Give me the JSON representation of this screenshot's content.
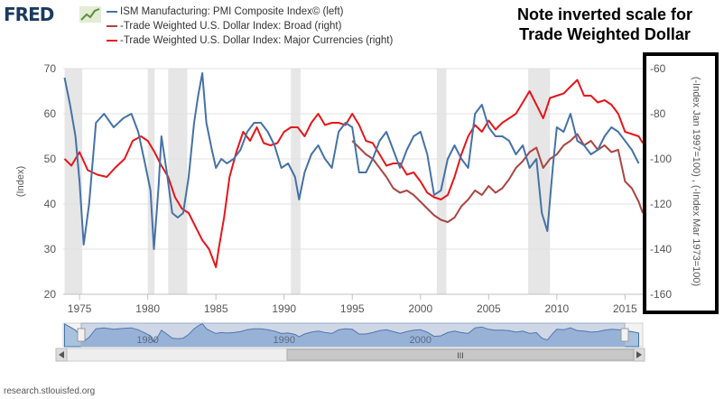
{
  "header": {
    "logo": "FRED",
    "legend": [
      {
        "label": "ISM Manufacturing: PMI Composite Index© (left)",
        "color": "#4572a7"
      },
      {
        "label": "-Trade Weighted U.S. Dollar Index: Broad (right)",
        "color": "#aa4643"
      },
      {
        "label": "-Trade Weighted U.S. Dollar Index: Major Currencies (right)",
        "color": "#e8151b"
      }
    ]
  },
  "note": {
    "line1": "Note inverted scale for",
    "line2": "Trade Weighted Dollar"
  },
  "footer": {
    "source": "research.stlouisfed.org"
  },
  "navigator": {
    "tick_labels": [
      "1980",
      "1990",
      "2000"
    ],
    "scroll_glyph": "III"
  },
  "chart_data": {
    "type": "line",
    "ylabel": "(Index)",
    "y2label": "(-Index Jan 1997=100) , (-Index Mar 1973=100)",
    "x_ticks": [
      1975,
      1980,
      1985,
      1990,
      1995,
      2000,
      2005,
      2010,
      2015
    ],
    "xlim": [
      1973.8,
      2016.3
    ],
    "ylim": [
      20,
      70
    ],
    "y_ticks": [
      20,
      30,
      40,
      50,
      60,
      70
    ],
    "y2lim": [
      -160,
      -60
    ],
    "y2_ticks": [
      -160,
      -140,
      -120,
      -100,
      -80,
      -60
    ],
    "grid": "horizontal",
    "recessions": [
      [
        1973.9,
        1975.2
      ],
      [
        1980.0,
        1980.5
      ],
      [
        1981.5,
        1982.9
      ],
      [
        1990.5,
        1991.2
      ],
      [
        2001.2,
        2001.9
      ],
      [
        2007.9,
        2009.5
      ]
    ],
    "series": [
      {
        "name": "ISM Manufacturing: PMI Composite Index© (left)",
        "axis": "left",
        "color": "#4572a7",
        "x": [
          1973.9,
          1974.3,
          1974.7,
          1975.0,
          1975.3,
          1975.7,
          1976.2,
          1976.8,
          1977.5,
          1978.2,
          1978.8,
          1979.3,
          1979.8,
          1980.2,
          1980.45,
          1980.8,
          1981.0,
          1981.4,
          1981.8,
          1982.2,
          1982.6,
          1983.0,
          1983.4,
          1983.7,
          1984.0,
          1984.3,
          1984.7,
          1985.0,
          1985.4,
          1985.8,
          1986.3,
          1986.8,
          1987.3,
          1987.8,
          1988.3,
          1988.8,
          1989.3,
          1989.8,
          1990.3,
          1990.8,
          1991.1,
          1991.5,
          1992.0,
          1992.5,
          1993.0,
          1993.5,
          1994.0,
          1994.5,
          1995.0,
          1995.5,
          1996.0,
          1996.5,
          1997.0,
          1997.5,
          1998.0,
          1998.5,
          1999.0,
          1999.5,
          2000.0,
          2000.5,
          2001.0,
          2001.5,
          2002.0,
          2002.5,
          2003.0,
          2003.5,
          2004.0,
          2004.5,
          2005.0,
          2005.5,
          2006.0,
          2006.5,
          2007.0,
          2007.5,
          2008.0,
          2008.5,
          2008.9,
          2009.3,
          2009.7,
          2010.0,
          2010.5,
          2011.0,
          2011.5,
          2012.0,
          2012.5,
          2013.0,
          2013.5,
          2014.0,
          2014.5,
          2015.0,
          2015.5,
          2016.0
        ],
        "values": [
          68,
          62,
          55,
          45,
          31,
          40,
          58,
          60,
          57,
          59,
          60,
          56,
          49,
          43,
          30,
          44,
          55,
          47,
          38,
          37,
          38,
          46,
          58,
          64,
          69,
          58,
          52,
          48,
          50,
          49,
          50,
          52,
          56,
          58,
          58,
          56,
          53,
          48,
          49,
          46,
          41,
          47,
          51,
          53,
          50,
          48,
          56,
          58,
          57,
          47,
          47,
          50,
          54,
          56,
          52,
          48,
          52,
          55,
          56,
          51,
          42,
          43,
          50,
          53,
          50,
          48,
          60,
          62,
          57,
          55,
          55,
          54,
          51,
          53,
          48,
          50,
          38,
          34,
          48,
          57,
          56,
          60,
          54,
          53,
          51,
          52,
          55,
          57,
          56,
          54,
          52,
          49
        ]
      },
      {
        "name": "-Trade Weighted U.S. Dollar Index: Broad (right)",
        "axis": "right",
        "color": "#aa4643",
        "x": [
          1995.0,
          1995.5,
          1996.0,
          1996.5,
          1997.0,
          1997.5,
          1998.0,
          1998.5,
          1999.0,
          1999.5,
          2000.0,
          2000.5,
          2001.0,
          2001.5,
          2002.0,
          2002.5,
          2003.0,
          2003.5,
          2004.0,
          2004.5,
          2005.0,
          2005.5,
          2006.0,
          2006.5,
          2007.0,
          2007.5,
          2008.0,
          2008.5,
          2009.0,
          2009.5,
          2010.0,
          2010.5,
          2011.0,
          2011.5,
          2012.0,
          2012.5,
          2013.0,
          2013.5,
          2014.0,
          2014.5,
          2015.0,
          2015.5,
          2016.0,
          2016.3
        ],
        "values": [
          -92,
          -95,
          -98,
          -100,
          -104,
          -108,
          -113,
          -115,
          -114,
          -116,
          -119,
          -122,
          -125,
          -127,
          -128,
          -126,
          -121,
          -118,
          -114,
          -116,
          -112,
          -115,
          -113,
          -109,
          -104,
          -101,
          -97,
          -95,
          -104,
          -100,
          -98,
          -94,
          -92,
          -89,
          -94,
          -92,
          -96,
          -94,
          -97,
          -96,
          -110,
          -113,
          -119,
          -124
        ]
      },
      {
        "name": "-Trade Weighted U.S. Dollar Index: Major Currencies (right)",
        "axis": "right",
        "color": "#e8151b",
        "x": [
          1973.9,
          1974.4,
          1975.0,
          1975.6,
          1976.3,
          1977.0,
          1977.6,
          1978.3,
          1978.9,
          1979.5,
          1980.0,
          1980.5,
          1981.0,
          1981.5,
          1982.0,
          1982.5,
          1983.0,
          1983.5,
          1984.0,
          1984.5,
          1985.0,
          1985.2,
          1985.6,
          1986.0,
          1986.5,
          1987.0,
          1987.5,
          1988.0,
          1988.5,
          1989.0,
          1989.5,
          1990.0,
          1990.5,
          1991.0,
          1991.5,
          1992.0,
          1992.5,
          1993.0,
          1993.5,
          1994.0,
          1994.5,
          1995.0,
          1995.5,
          1996.0,
          1996.5,
          1997.0,
          1997.5,
          1998.0,
          1998.5,
          1999.0,
          1999.5,
          2000.0,
          2000.5,
          2001.0,
          2001.5,
          2002.0,
          2002.5,
          2003.0,
          2003.5,
          2004.0,
          2004.5,
          2005.0,
          2005.5,
          2006.0,
          2006.5,
          2007.0,
          2007.5,
          2008.0,
          2008.5,
          2009.0,
          2009.5,
          2010.0,
          2010.5,
          2011.0,
          2011.5,
          2012.0,
          2012.5,
          2013.0,
          2013.5,
          2014.0,
          2014.5,
          2015.0,
          2015.5,
          2016.0,
          2016.3
        ],
        "values": [
          -100,
          -103,
          -97,
          -105,
          -107,
          -108,
          -104,
          -100,
          -92,
          -90,
          -92,
          -97,
          -103,
          -108,
          -117,
          -122,
          -124,
          -130,
          -136,
          -140,
          -148,
          -140,
          -126,
          -108,
          -97,
          -88,
          -92,
          -86,
          -93,
          -94,
          -93,
          -88,
          -86,
          -86,
          -90,
          -84,
          -80,
          -85,
          -84,
          -84,
          -85,
          -80,
          -85,
          -92,
          -93,
          -98,
          -103,
          -102,
          -102,
          -107,
          -106,
          -110,
          -115,
          -117,
          -118,
          -116,
          -108,
          -98,
          -90,
          -85,
          -88,
          -83,
          -87,
          -84,
          -82,
          -80,
          -75,
          -70,
          -76,
          -82,
          -73,
          -72,
          -71,
          -68,
          -65,
          -72,
          -72,
          -75,
          -74,
          -76,
          -80,
          -88,
          -89,
          -90,
          -93
        ]
      }
    ]
  }
}
